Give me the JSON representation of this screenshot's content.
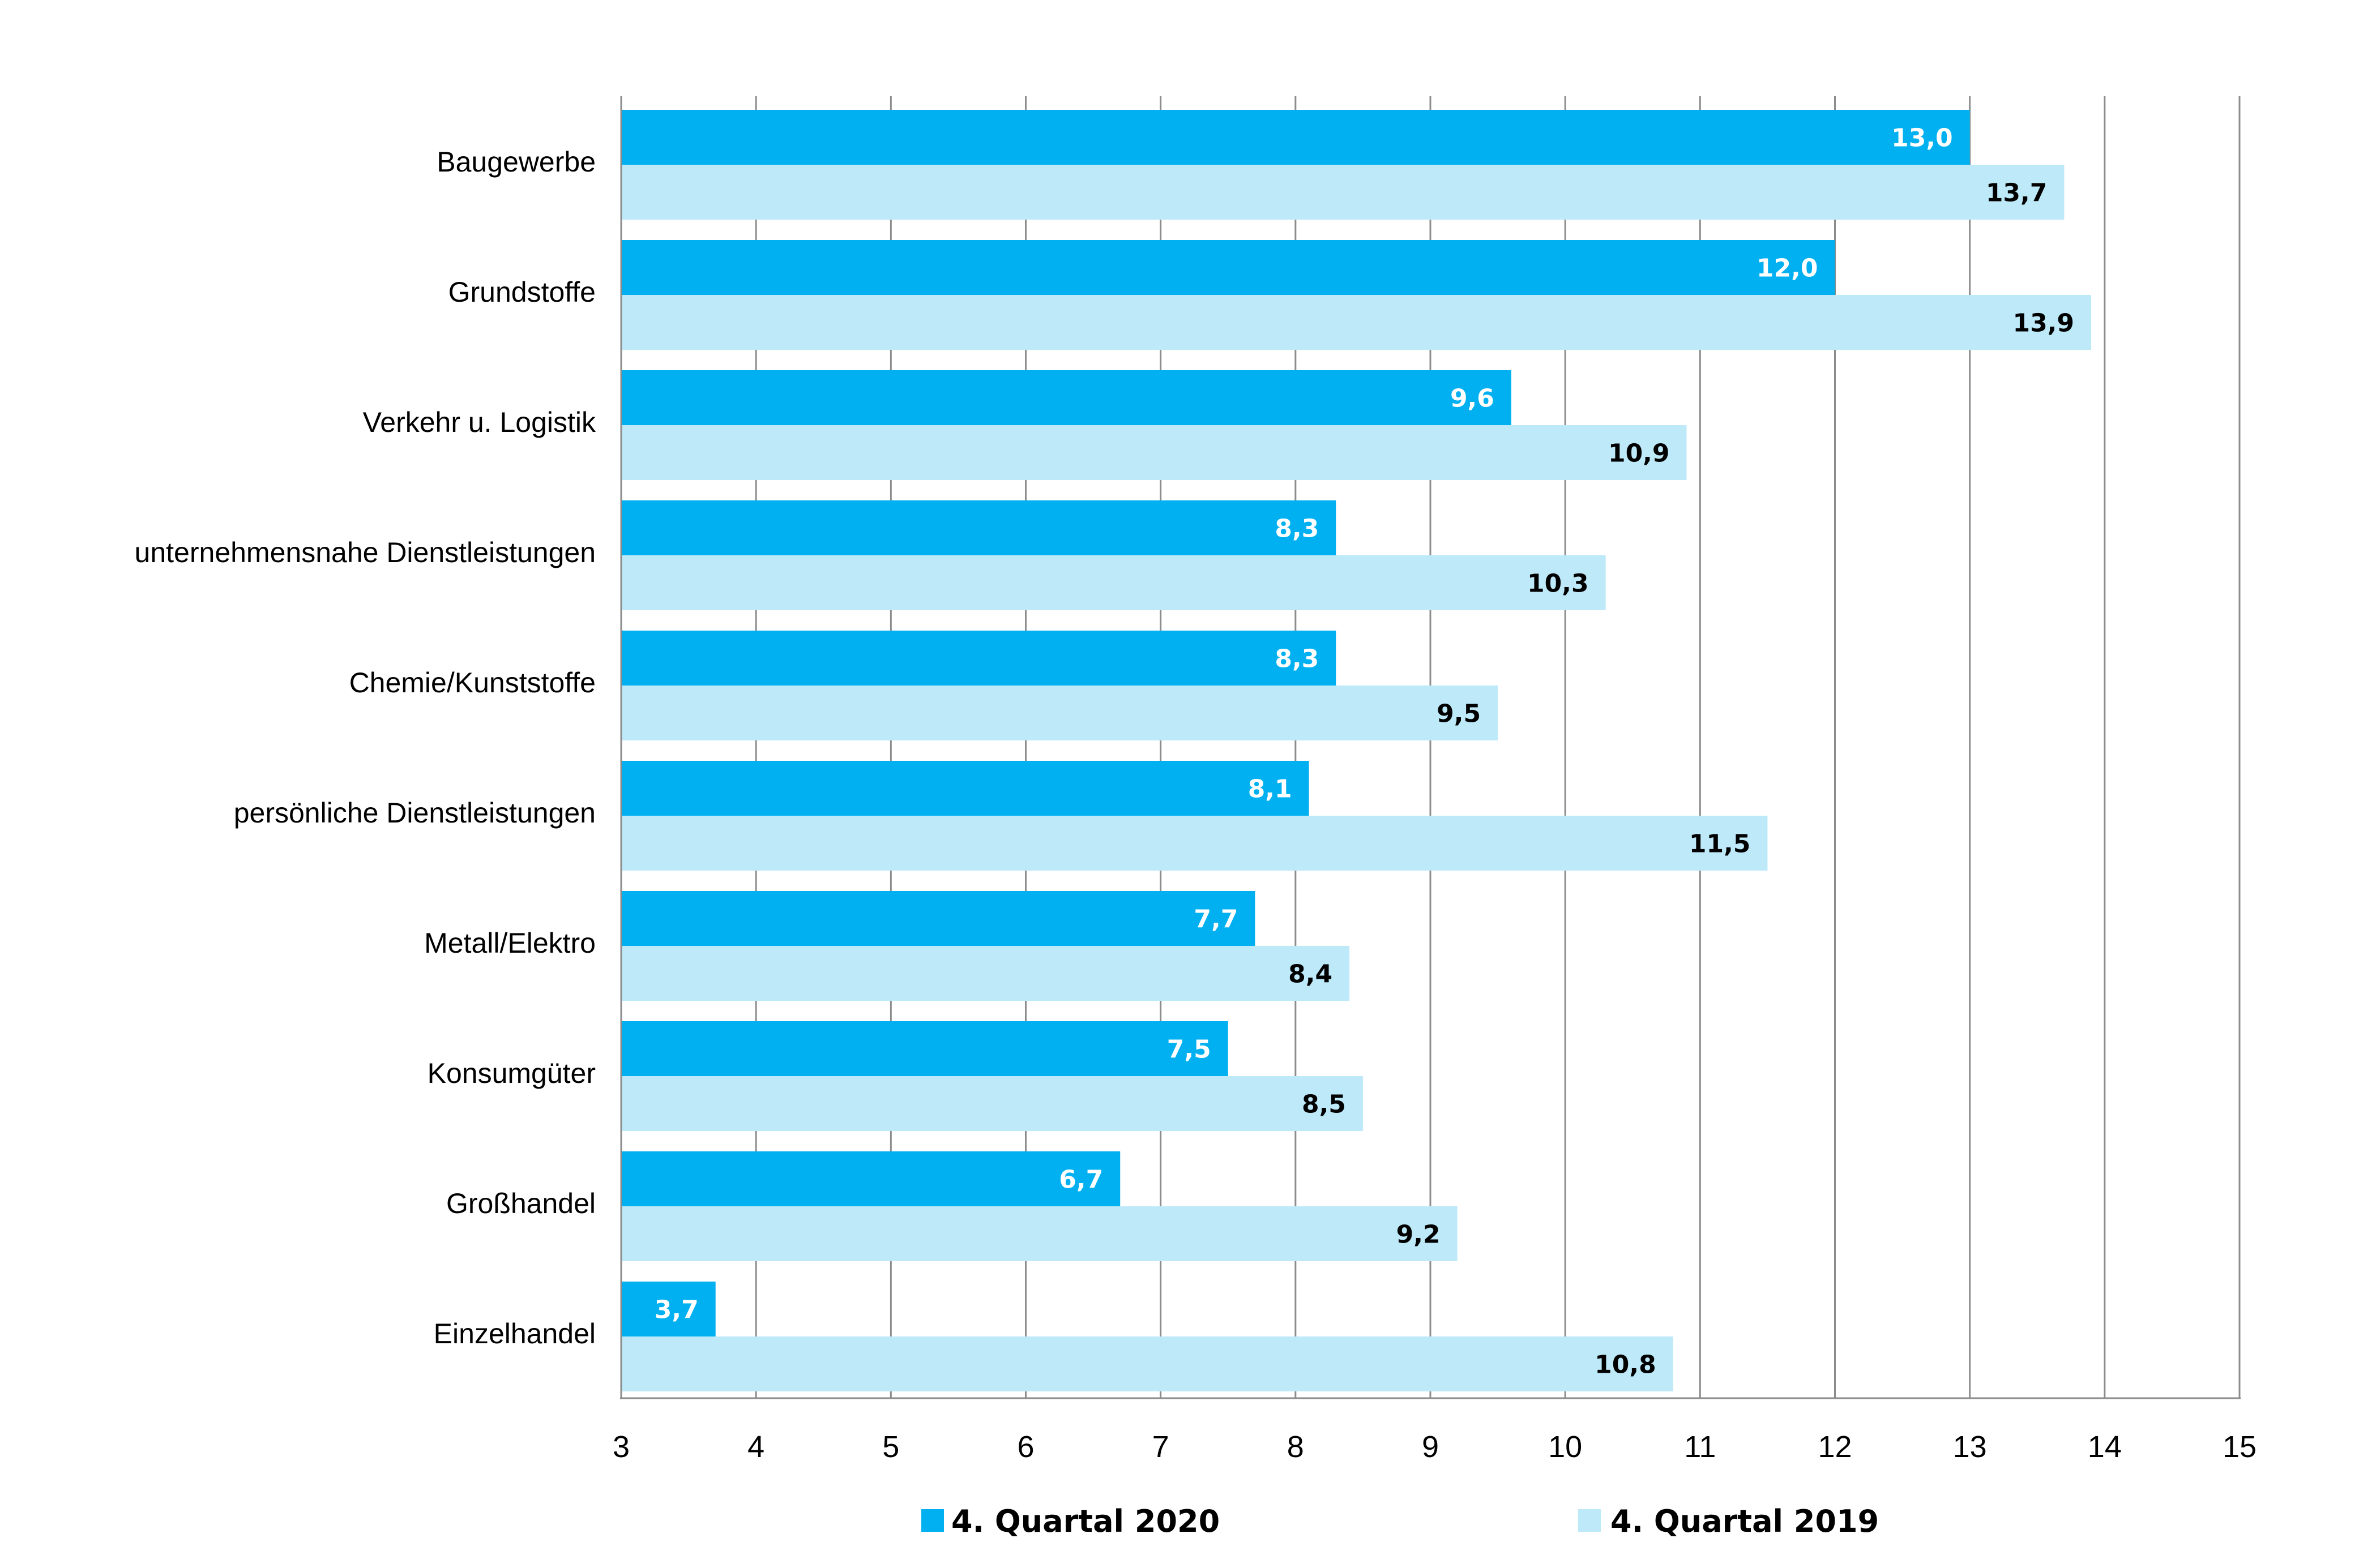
{
  "chart_data": {
    "type": "bar",
    "orientation": "horizontal",
    "categories": [
      "Baugewerbe",
      "Grundstoffe",
      "Verkehr u. Logistik",
      "unternehmensnahe Dienstleistungen",
      "Chemie/Kunststoffe",
      "persönliche Dienstleistungen",
      "Metall/Elektro",
      "Konsumgüter",
      "Großhandel",
      "Einzelhandel"
    ],
    "series": [
      {
        "name": "4. Quartal 2020",
        "color": "#00b0f0",
        "label_color": "#ffffff",
        "values": [
          13.0,
          12.0,
          9.6,
          8.3,
          8.3,
          8.1,
          7.7,
          7.5,
          6.7,
          3.7
        ],
        "value_labels": [
          "13,0",
          "12,0",
          "9,6",
          "8,3",
          "8,3",
          "8,1",
          "7,7",
          "7,5",
          "6,7",
          "3,7"
        ]
      },
      {
        "name": "4. Quartal 2019",
        "color": "#bde9f9",
        "label_color": "#000000",
        "values": [
          13.7,
          13.9,
          10.9,
          10.3,
          9.5,
          11.5,
          8.4,
          8.5,
          9.2,
          10.8
        ],
        "value_labels": [
          "13,7",
          "13,9",
          "10,9",
          "10,3",
          "9,5",
          "11,5",
          "8,4",
          "8,5",
          "9,2",
          "10,8"
        ]
      }
    ],
    "xlim": [
      3,
      15
    ],
    "x_ticks": [
      "3",
      "4",
      "5",
      "6",
      "7",
      "8",
      "9",
      "10",
      "11",
      "12",
      "13",
      "14",
      "15"
    ],
    "grid": "vertical",
    "legend_position": "bottom",
    "title": "",
    "xlabel": "",
    "ylabel": ""
  }
}
